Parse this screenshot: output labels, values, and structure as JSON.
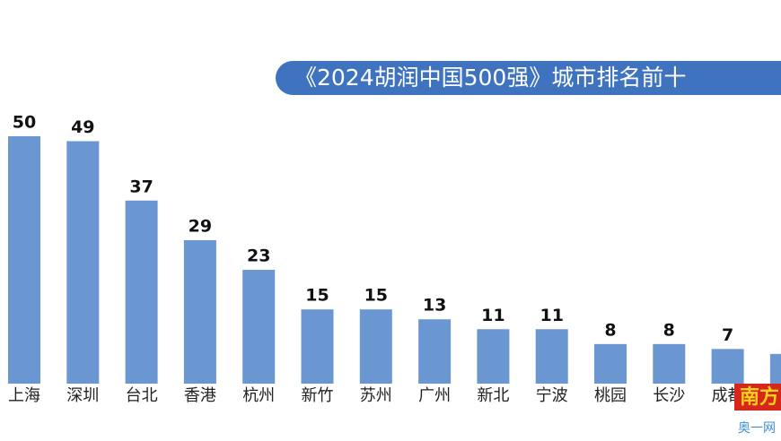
{
  "chart_data": {
    "type": "bar",
    "title": "《2024胡润中国500强》城市排名前十",
    "categories": [
      "上海",
      "深圳",
      "台北",
      "香港",
      "杭州",
      "新竹",
      "苏州",
      "广州",
      "新北",
      "宁波",
      "桃园",
      "长沙",
      "成都",
      null
    ],
    "values": [
      50,
      49,
      37,
      29,
      23,
      15,
      15,
      13,
      11,
      11,
      8,
      8,
      7,
      6
    ],
    "color": "#6a97d2",
    "title_color": "#3f73c0",
    "watermark": {
      "brand": "南方",
      "site": "奥一网"
    }
  }
}
